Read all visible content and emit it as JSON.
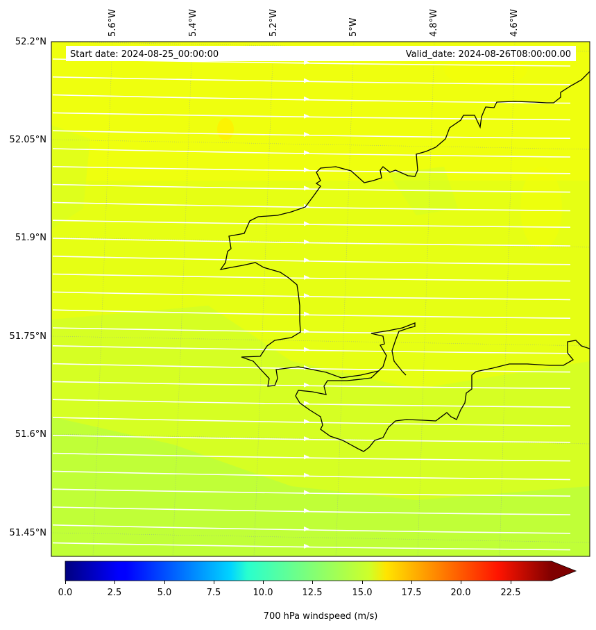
{
  "map": {
    "start_date_text": "Start date: 2024-08-25_00:00:00",
    "valid_date_text": "Valid_date: 2024-08-26T08:00:00.00",
    "field": "700 hPa windspeed",
    "lon_labels": [
      "5.6°W",
      "5.4°W",
      "5.2°W",
      "5°W",
      "4.8°W",
      "4.6°W"
    ],
    "lat_labels": [
      "52.2°N",
      "52.05°N",
      "51.9°N",
      "51.75°N",
      "51.6°N",
      "51.45°N"
    ],
    "coastline_color": "#000000",
    "streamline_color": "#ffffff",
    "background_field_color": "#e8ff14"
  },
  "colorbar": {
    "label": "700 hPa windspeed (m/s)",
    "tick_labels": [
      "0.0",
      "2.5",
      "5.0",
      "7.5",
      "10.0",
      "12.5",
      "15.0",
      "17.5",
      "20.0",
      "22.5"
    ],
    "range": [
      0,
      25
    ],
    "colormap": "jet",
    "extend": "max"
  }
}
